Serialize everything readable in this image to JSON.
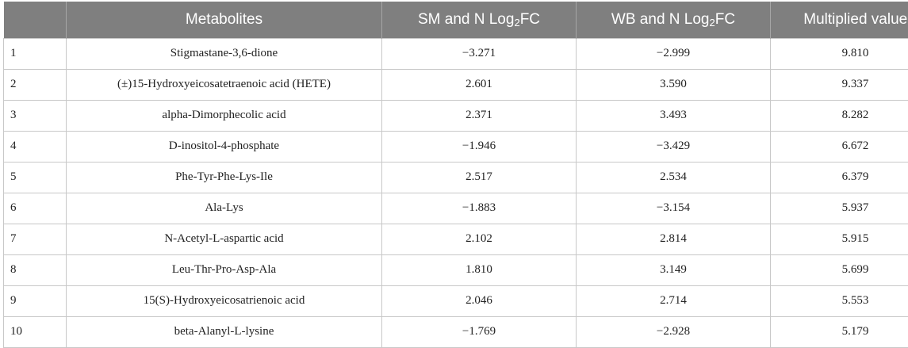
{
  "table": {
    "headers": {
      "index": "",
      "metabolites": "Metabolites",
      "sm_prefix": "SM and N Log",
      "sm_sub": "2",
      "sm_suffix": "FC",
      "wb_prefix": "WB and N Log",
      "wb_sub": "2",
      "wb_suffix": "FC",
      "multiplied": "Multiplied value"
    },
    "rows": [
      {
        "index": "1",
        "metabolite": "Stigmastane-3,6-dione",
        "sm": "−3.271",
        "wb": "−2.999",
        "multiplied": "9.810"
      },
      {
        "index": "2",
        "metabolite": "(±)15-Hydroxyeicosatetraenoic acid (HETE)",
        "sm": "2.601",
        "wb": "3.590",
        "multiplied": "9.337"
      },
      {
        "index": "3",
        "metabolite": "alpha-Dimorphecolic acid",
        "sm": "2.371",
        "wb": "3.493",
        "multiplied": "8.282"
      },
      {
        "index": "4",
        "metabolite": "D-inositol-4-phosphate",
        "sm": "−1.946",
        "wb": "−3.429",
        "multiplied": "6.672"
      },
      {
        "index": "5",
        "metabolite": "Phe-Tyr-Phe-Lys-Ile",
        "sm": "2.517",
        "wb": "2.534",
        "multiplied": "6.379"
      },
      {
        "index": "6",
        "metabolite": "Ala-Lys",
        "sm": "−1.883",
        "wb": "−3.154",
        "multiplied": "5.937"
      },
      {
        "index": "7",
        "metabolite": "N-Acetyl-L-aspartic acid",
        "sm": "2.102",
        "wb": "2.814",
        "multiplied": "5.915"
      },
      {
        "index": "8",
        "metabolite": "Leu-Thr-Pro-Asp-Ala",
        "sm": "1.810",
        "wb": "3.149",
        "multiplied": "5.699"
      },
      {
        "index": "9",
        "metabolite": "15(S)-Hydroxyeicosatrienoic acid",
        "sm": "2.046",
        "wb": "2.714",
        "multiplied": "5.553"
      },
      {
        "index": "10",
        "metabolite": "beta-Alanyl-L-lysine",
        "sm": "−1.769",
        "wb": "−2.928",
        "multiplied": "5.179"
      }
    ]
  },
  "colors": {
    "header_background": "#7f7f7f",
    "header_text": "#ffffff",
    "grid_line": "#c8c8c8",
    "body_text": "#222222"
  }
}
